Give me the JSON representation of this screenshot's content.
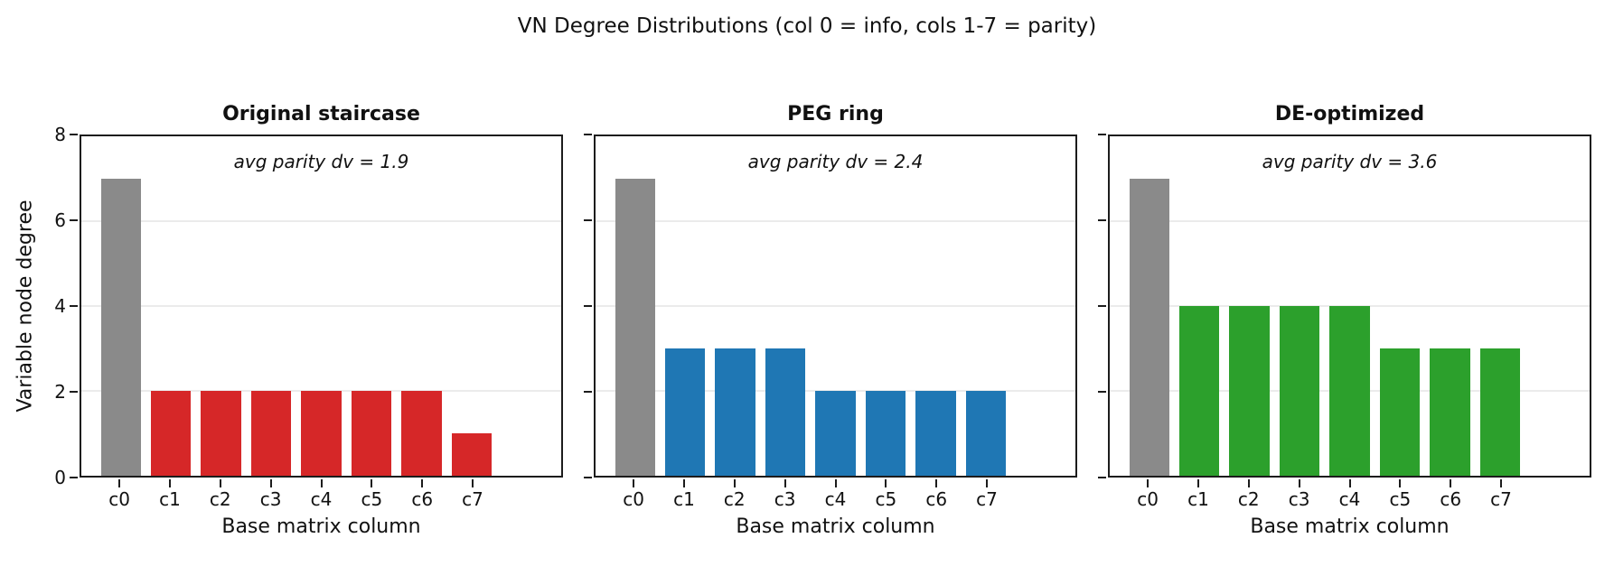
{
  "figure": {
    "title": "VN Degree Distributions (col 0 = info, cols 1-7 = parity)",
    "ylabel": "Variable node degree",
    "xlabel": "Base matrix column",
    "background": "#ffffff"
  },
  "colors": {
    "info_bar": "#8a8a8a",
    "grid": "#ebebeb",
    "spine": "#1c1c1c",
    "text": "#111111"
  },
  "chart_data": [
    {
      "type": "bar",
      "title": "Original staircase",
      "annotation": "avg parity dv = 1.9",
      "categories": [
        "c0",
        "c1",
        "c2",
        "c3",
        "c4",
        "c5",
        "c6",
        "c7"
      ],
      "values": [
        7,
        2,
        2,
        2,
        2,
        2,
        2,
        1
      ],
      "info_color": "#8a8a8a",
      "parity_color": "#d62728",
      "xlabel": "Base matrix column",
      "ylabel": "Variable node degree",
      "ylim": [
        0,
        8
      ],
      "yticks": [
        0,
        2,
        4,
        6,
        8
      ],
      "gridline_values": [
        2,
        4,
        6
      ],
      "grid": "horizontal",
      "legend": "none"
    },
    {
      "type": "bar",
      "title": "PEG ring",
      "annotation": "avg parity dv = 2.4",
      "categories": [
        "c0",
        "c1",
        "c2",
        "c3",
        "c4",
        "c5",
        "c6",
        "c7"
      ],
      "values": [
        7,
        3,
        3,
        3,
        2,
        2,
        2,
        2
      ],
      "info_color": "#8a8a8a",
      "parity_color": "#1f77b4",
      "xlabel": "Base matrix column",
      "ylabel": "Variable node degree",
      "ylim": [
        0,
        8
      ],
      "yticks": [
        0,
        2,
        4,
        6,
        8
      ],
      "gridline_values": [
        2,
        4,
        6
      ],
      "grid": "horizontal",
      "legend": "none"
    },
    {
      "type": "bar",
      "title": "DE-optimized",
      "annotation": "avg parity dv = 3.6",
      "categories": [
        "c0",
        "c1",
        "c2",
        "c3",
        "c4",
        "c5",
        "c6",
        "c7"
      ],
      "values": [
        7,
        4,
        4,
        4,
        4,
        3,
        3,
        3
      ],
      "info_color": "#8a8a8a",
      "parity_color": "#2ca02c",
      "xlabel": "Base matrix column",
      "ylabel": "Variable node degree",
      "ylim": [
        0,
        8
      ],
      "yticks": [
        0,
        2,
        4,
        6,
        8
      ],
      "gridline_values": [
        2,
        4,
        6
      ],
      "grid": "horizontal",
      "legend": "none"
    }
  ]
}
